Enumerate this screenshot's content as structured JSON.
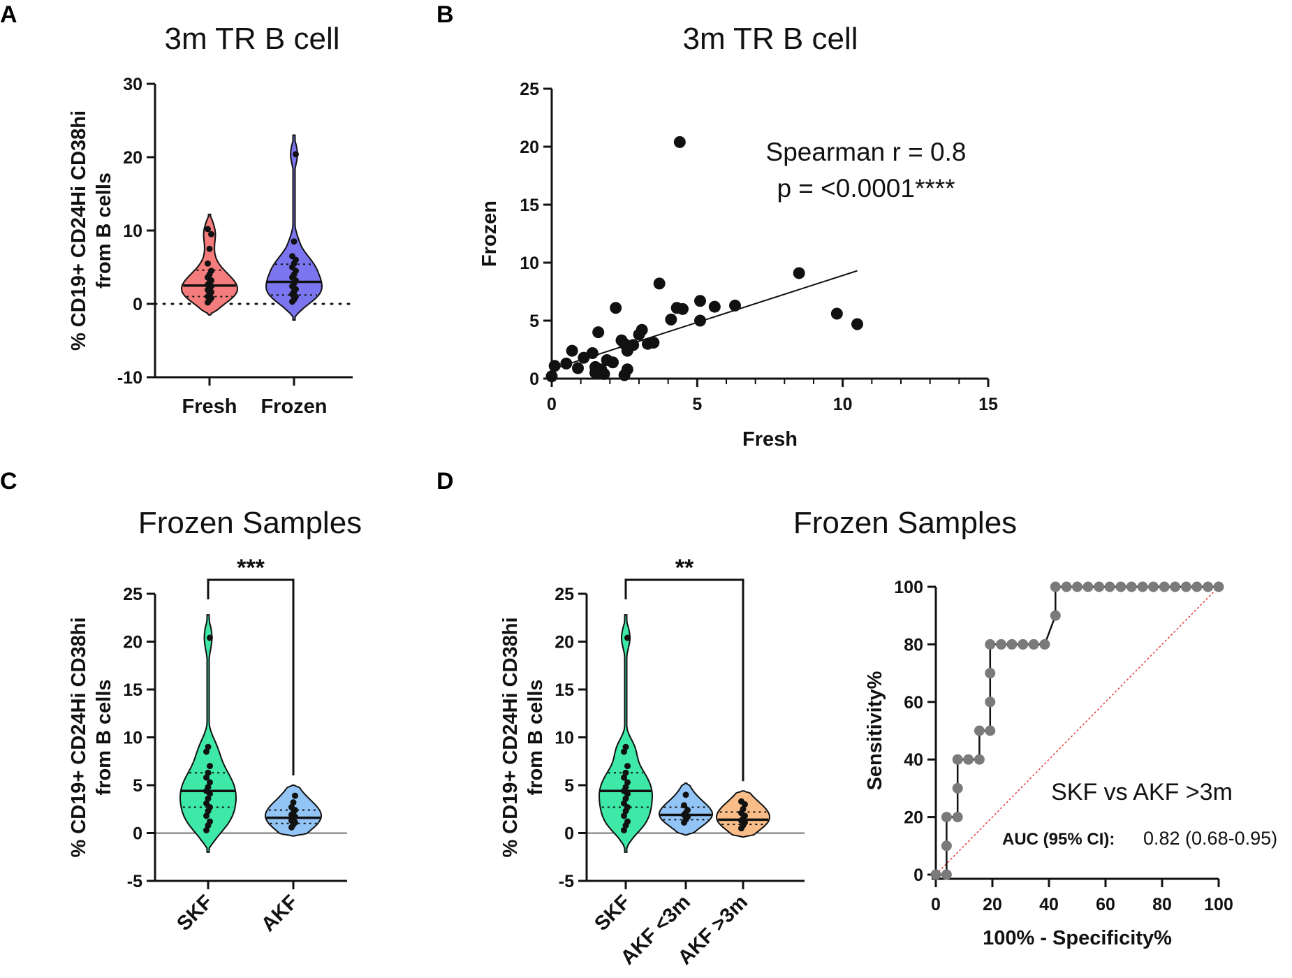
{
  "panels": {
    "A": {
      "letter": "A",
      "title": "3m TR B cell"
    },
    "B": {
      "letter": "B",
      "title": "3m TR B cell"
    },
    "C": {
      "letter": "C",
      "title": "Frozen Samples"
    },
    "D": {
      "letter": "D",
      "title": "Frozen Samples"
    }
  },
  "chart_data": [
    {
      "id": "A",
      "type": "violin",
      "title": "3m TR B cell",
      "ylabel": "% CD19+ CD24Hi CD38hi from B cells",
      "line1": "% CD19+ CD24Hi CD38hi",
      "line2": "from B cells",
      "ylim": [
        -10,
        30
      ],
      "yticks": [
        -10,
        0,
        10,
        20,
        30
      ],
      "baseline": "dotted",
      "categories": [
        "Fresh",
        "Frozen"
      ],
      "groups": [
        {
          "name": "Fresh",
          "color": "#f47c7c",
          "median": 2.5,
          "q1": 1.0,
          "q3": 4.6,
          "min": -1.5,
          "max": 12.2,
          "points": [
            0.2,
            0.5,
            0.8,
            1.0,
            1.3,
            1.6,
            1.9,
            2.1,
            2.4,
            2.6,
            2.9,
            3.2,
            3.6,
            4.0,
            4.5,
            5.5,
            7.5,
            9.5,
            10.2
          ]
        },
        {
          "name": "Frozen",
          "color": "#7b76f0",
          "median": 3.0,
          "q1": 1.2,
          "q3": 5.4,
          "min": -2.2,
          "max": 23.0,
          "points": [
            0.3,
            0.6,
            1.0,
            1.3,
            1.7,
            2.0,
            2.4,
            2.8,
            3.2,
            3.6,
            4.0,
            4.5,
            5.0,
            5.5,
            6.0,
            6.5,
            8.5,
            20.4
          ]
        }
      ]
    },
    {
      "id": "B",
      "type": "scatter",
      "title": "3m TR B cell",
      "xlabel": "Fresh",
      "ylabel": "Frozen",
      "xlim": [
        0,
        15
      ],
      "ylim": [
        0,
        25
      ],
      "xticks": [
        0,
        5,
        10,
        15
      ],
      "yticks": [
        0,
        5,
        10,
        15,
        20,
        25
      ],
      "annotation": [
        "Spearman r = 0.8",
        "p = <0.0001****"
      ],
      "fit": {
        "x": [
          0,
          10.5
        ],
        "y": [
          0.8,
          9.3
        ]
      },
      "points": [
        [
          0.0,
          0.2
        ],
        [
          0.1,
          1.1
        ],
        [
          0.5,
          1.3
        ],
        [
          0.7,
          2.4
        ],
        [
          0.9,
          0.9
        ],
        [
          1.1,
          1.8
        ],
        [
          1.4,
          2.2
        ],
        [
          1.5,
          1.0
        ],
        [
          1.5,
          0.5
        ],
        [
          1.6,
          4.0
        ],
        [
          1.7,
          0.8
        ],
        [
          1.8,
          0.4
        ],
        [
          1.9,
          1.6
        ],
        [
          2.1,
          1.4
        ],
        [
          2.2,
          6.1
        ],
        [
          2.4,
          3.3
        ],
        [
          2.5,
          3.0
        ],
        [
          2.6,
          2.4
        ],
        [
          2.6,
          0.8
        ],
        [
          2.5,
          0.3
        ],
        [
          2.8,
          2.9
        ],
        [
          3.0,
          3.8
        ],
        [
          3.1,
          4.2
        ],
        [
          3.3,
          3.0
        ],
        [
          3.5,
          3.1
        ],
        [
          3.7,
          8.2
        ],
        [
          4.1,
          5.1
        ],
        [
          4.3,
          6.1
        ],
        [
          4.4,
          20.4
        ],
        [
          4.5,
          6.0
        ],
        [
          5.1,
          5.0
        ],
        [
          5.1,
          6.7
        ],
        [
          5.6,
          6.2
        ],
        [
          6.3,
          6.3
        ],
        [
          8.5,
          9.1
        ],
        [
          9.8,
          5.6
        ],
        [
          10.5,
          4.7
        ]
      ]
    },
    {
      "id": "C",
      "type": "violin",
      "title": "Frozen Samples",
      "ylabel": "% CD19+ CD24Hi CD38hi from B cells",
      "line1": "% CD19+ CD24Hi CD38hi",
      "line2": "from B cells",
      "ylim": [
        -5,
        25
      ],
      "yticks": [
        -5,
        0,
        5,
        10,
        15,
        20,
        25
      ],
      "baseline": "solid",
      "categories": [
        "SKF",
        "AKF"
      ],
      "significance": {
        "label": "***",
        "from": "SKF",
        "to": "AKF"
      },
      "groups": [
        {
          "name": "SKF",
          "color": "#3ee8a6",
          "median": 4.4,
          "q1": 2.7,
          "q3": 6.3,
          "min": -2.0,
          "max": 22.8,
          "points": [
            0.3,
            0.8,
            1.2,
            1.8,
            2.3,
            2.7,
            3.1,
            3.6,
            4.1,
            4.4,
            4.8,
            5.3,
            5.8,
            6.3,
            7.0,
            8.5,
            9.0,
            20.4
          ]
        },
        {
          "name": "AKF",
          "color": "#92c4f6",
          "median": 1.6,
          "q1": 1.0,
          "q3": 2.4,
          "min": -0.3,
          "max": 5.0,
          "points": [
            0.6,
            0.9,
            1.1,
            1.3,
            1.5,
            1.7,
            1.9,
            2.1,
            2.4,
            2.7,
            3.2,
            3.9
          ]
        }
      ]
    },
    {
      "id": "D1",
      "type": "violin",
      "title": "Frozen Samples",
      "ylabel": "% CD19+ CD24Hi CD38hi from B cells",
      "line1": "% CD19+ CD24Hi CD38hi",
      "line2": "from B cells",
      "ylim": [
        -5,
        25
      ],
      "yticks": [
        -5,
        0,
        5,
        10,
        15,
        20,
        25
      ],
      "baseline": "solid",
      "categories": [
        "SKF",
        "AKF <3m",
        "AKF >3m"
      ],
      "significance": {
        "label": "**",
        "from": "SKF",
        "to": "AKF >3m"
      },
      "groups": [
        {
          "name": "SKF",
          "color": "#3ee8a6",
          "median": 4.4,
          "q1": 2.7,
          "q3": 6.3,
          "min": -2.0,
          "max": 22.8,
          "points": [
            0.3,
            0.8,
            1.2,
            1.8,
            2.3,
            2.7,
            3.1,
            3.6,
            4.1,
            4.4,
            4.8,
            5.3,
            5.8,
            6.3,
            7.0,
            8.5,
            9.0,
            20.4
          ]
        },
        {
          "name": "AKF <3m",
          "color": "#92c4f6",
          "median": 1.9,
          "q1": 1.4,
          "q3": 2.7,
          "min": -0.2,
          "max": 5.2,
          "points": [
            1.1,
            1.4,
            1.7,
            1.9,
            2.1,
            2.4,
            2.9,
            4.0
          ]
        },
        {
          "name": "AKF >3m",
          "color": "#f9bd8a",
          "median": 1.4,
          "q1": 0.9,
          "q3": 2.2,
          "min": -0.4,
          "max": 4.4,
          "points": [
            0.5,
            0.8,
            1.1,
            1.3,
            1.5,
            1.8,
            2.1,
            2.5,
            3.0,
            3.3
          ]
        }
      ]
    },
    {
      "id": "D2",
      "type": "line",
      "subtype": "roc",
      "xlabel": "100% - Specificity%",
      "ylabel": "Sensitivity%",
      "xlim": [
        0,
        100
      ],
      "ylim": [
        0,
        100
      ],
      "xticks": [
        0,
        20,
        40,
        60,
        80,
        100
      ],
      "yticks": [
        0,
        20,
        40,
        60,
        80,
        100
      ],
      "annotation": "SKF vs AKF >3m",
      "auc_label": "AUC (95% CI):",
      "auc_value": "0.82 (0.68-0.95)",
      "points": [
        [
          0,
          0
        ],
        [
          3.8,
          0
        ],
        [
          3.8,
          10
        ],
        [
          3.8,
          20
        ],
        [
          7.7,
          20
        ],
        [
          7.7,
          30
        ],
        [
          7.7,
          40
        ],
        [
          11.5,
          40
        ],
        [
          15.4,
          40
        ],
        [
          15.4,
          50
        ],
        [
          19.2,
          50
        ],
        [
          19.2,
          60
        ],
        [
          19.2,
          70
        ],
        [
          19.2,
          80
        ],
        [
          23.1,
          80
        ],
        [
          26.9,
          80
        ],
        [
          30.8,
          80
        ],
        [
          34.6,
          80
        ],
        [
          38.5,
          80
        ],
        [
          42.3,
          90
        ],
        [
          42.3,
          100
        ],
        [
          46.2,
          100
        ],
        [
          50,
          100
        ],
        [
          53.8,
          100
        ],
        [
          57.7,
          100
        ],
        [
          61.5,
          100
        ],
        [
          65.4,
          100
        ],
        [
          69.2,
          100
        ],
        [
          73.1,
          100
        ],
        [
          76.9,
          100
        ],
        [
          80.8,
          100
        ],
        [
          84.6,
          100
        ],
        [
          88.5,
          100
        ],
        [
          92.3,
          100
        ],
        [
          96.2,
          100
        ],
        [
          100,
          100
        ]
      ],
      "reference_line": {
        "x": [
          0,
          100
        ],
        "y": [
          0,
          100
        ],
        "color": "#e53935"
      }
    }
  ]
}
